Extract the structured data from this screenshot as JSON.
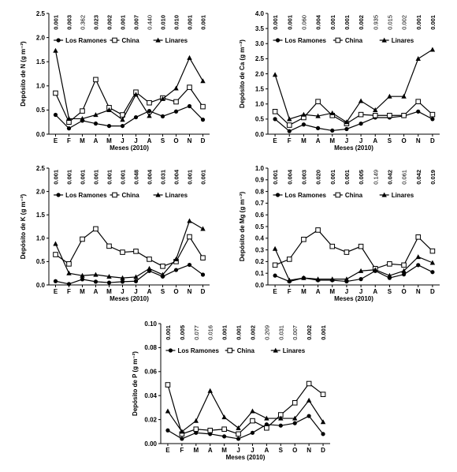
{
  "chart_data": [
    {
      "type": "line",
      "xlabel": "Meses (2010)",
      "ylabel": "Depósito de N (g m⁻²)",
      "ylim": [
        0,
        2.5
      ],
      "yticks": [
        "0.0",
        "0.5",
        "1.0",
        "1.5",
        "2.0",
        "2.5"
      ],
      "categories": [
        "E",
        "F",
        "M",
        "A",
        "M",
        "J",
        "J",
        "A",
        "S",
        "O",
        "N",
        "D"
      ],
      "pvalues": [
        "0.001",
        "0.003",
        "0.362",
        "0.023",
        "0.002",
        "0.001",
        "0.007",
        "0.440",
        "0.010",
        "0.010",
        "0.001",
        "0.001"
      ],
      "pvalues_bold": [
        true,
        true,
        false,
        true,
        true,
        true,
        true,
        false,
        true,
        true,
        true,
        true
      ],
      "legend_position": "top",
      "grid": false,
      "series": [
        {
          "name": "Los Ramones",
          "marker": "circle-filled",
          "values": [
            0.4,
            0.12,
            0.28,
            0.22,
            0.17,
            0.17,
            0.35,
            0.48,
            0.37,
            0.47,
            0.58,
            0.3
          ]
        },
        {
          "name": "China",
          "marker": "square-open",
          "values": [
            0.85,
            0.25,
            0.48,
            1.13,
            0.55,
            0.4,
            0.87,
            0.65,
            0.75,
            0.67,
            0.97,
            0.57
          ]
        },
        {
          "name": "Linares",
          "marker": "triangle-filled",
          "values": [
            1.73,
            0.32,
            0.32,
            0.4,
            0.5,
            0.3,
            0.82,
            0.38,
            0.73,
            0.95,
            1.58,
            1.1
          ]
        }
      ]
    },
    {
      "type": "line",
      "xlabel": "Meses (2010)",
      "ylabel": "Depósito de Ca (g m⁻²)",
      "ylim": [
        0,
        4.0
      ],
      "yticks": [
        "0.0",
        "0.5",
        "1.0",
        "1.5",
        "2.0",
        "2.5",
        "3.0",
        "3.5",
        "4.0"
      ],
      "categories": [
        "E",
        "F",
        "M",
        "A",
        "M",
        "J",
        "J",
        "A",
        "S",
        "O",
        "N",
        "D"
      ],
      "pvalues": [
        "0.001",
        "0.001",
        "0.060",
        "0.004",
        "0.001",
        "0.001",
        "0.002",
        "0.935",
        "0.015",
        "0.002",
        "0.001",
        "0.001"
      ],
      "pvalues_bold": [
        true,
        true,
        false,
        true,
        true,
        true,
        true,
        false,
        false,
        false,
        true,
        true
      ],
      "legend_position": "top",
      "grid": false,
      "series": [
        {
          "name": "Los Ramones",
          "marker": "circle-filled",
          "values": [
            0.5,
            0.1,
            0.32,
            0.2,
            0.12,
            0.17,
            0.35,
            0.55,
            0.55,
            0.6,
            0.75,
            0.5
          ]
        },
        {
          "name": "China",
          "marker": "square-open",
          "values": [
            0.75,
            0.3,
            0.55,
            1.08,
            0.62,
            0.35,
            0.65,
            0.62,
            0.62,
            0.62,
            1.08,
            0.65
          ]
        },
        {
          "name": "Linares",
          "marker": "triangle-filled",
          "values": [
            1.97,
            0.5,
            0.65,
            0.6,
            0.7,
            0.4,
            1.1,
            0.8,
            1.25,
            1.25,
            2.5,
            2.8
          ]
        }
      ]
    },
    {
      "type": "line",
      "xlabel": "Meses (2010)",
      "ylabel": "Depósito de K (g m⁻²)",
      "ylim": [
        0,
        2.5
      ],
      "yticks": [
        "0.0",
        "0.5",
        "1.0",
        "1.5",
        "2.0",
        "2.5"
      ],
      "categories": [
        "E",
        "F",
        "M",
        "A",
        "M",
        "J",
        "J",
        "A",
        "S",
        "O",
        "N",
        "D"
      ],
      "pvalues": [
        "0.001",
        "0.001",
        "0.001",
        "0.001",
        "0.001",
        "0.001",
        "0.048",
        "0.004",
        "0.031",
        "0.004",
        "0.001",
        "0.001"
      ],
      "pvalues_bold": [
        true,
        true,
        true,
        true,
        true,
        true,
        true,
        true,
        true,
        true,
        true,
        true
      ],
      "legend_position": "top",
      "grid": false,
      "series": [
        {
          "name": "Los Ramones",
          "marker": "circle-filled",
          "values": [
            0.08,
            0.02,
            0.12,
            0.07,
            0.05,
            0.07,
            0.08,
            0.3,
            0.18,
            0.32,
            0.43,
            0.22
          ]
        },
        {
          "name": "China",
          "marker": "square-open",
          "values": [
            0.65,
            0.45,
            0.98,
            1.2,
            0.83,
            0.7,
            0.72,
            0.55,
            0.4,
            0.5,
            1.03,
            0.58
          ]
        },
        {
          "name": "Linares",
          "marker": "triangle-filled",
          "values": [
            0.88,
            0.25,
            0.2,
            0.22,
            0.18,
            0.15,
            0.17,
            0.35,
            0.22,
            0.55,
            1.37,
            1.2
          ]
        }
      ]
    },
    {
      "type": "line",
      "xlabel": "Meses (2010)",
      "ylabel": "Depósito de Mg (g m⁻²)",
      "ylim": [
        0,
        1.0
      ],
      "yticks": [
        "0.0",
        "0.1",
        "0.2",
        "0.3",
        "0.4",
        "0.5",
        "0.6",
        "0.7",
        "0.8",
        "0.9",
        "1.0"
      ],
      "categories": [
        "E",
        "F",
        "M",
        "A",
        "M",
        "J",
        "J",
        "A",
        "S",
        "O",
        "N",
        "D"
      ],
      "pvalues": [
        "0.001",
        "0.004",
        "0.003",
        "0.020",
        "0.001",
        "0.001",
        "0.005",
        "0.149",
        "0.042",
        "0.061",
        "0.042",
        "0.019"
      ],
      "pvalues_bold": [
        true,
        true,
        true,
        true,
        true,
        true,
        true,
        false,
        true,
        false,
        true,
        true
      ],
      "legend_position": "top",
      "grid": false,
      "series": [
        {
          "name": "Los Ramones",
          "marker": "circle-filled",
          "values": [
            0.08,
            0.03,
            0.06,
            0.04,
            0.04,
            0.03,
            0.05,
            0.12,
            0.06,
            0.09,
            0.17,
            0.11
          ]
        },
        {
          "name": "China",
          "marker": "square-open",
          "values": [
            0.17,
            0.22,
            0.39,
            0.47,
            0.33,
            0.28,
            0.33,
            0.14,
            0.18,
            0.17,
            0.41,
            0.29
          ]
        },
        {
          "name": "Linares",
          "marker": "triangle-filled",
          "values": [
            0.31,
            0.04,
            0.06,
            0.05,
            0.05,
            0.05,
            0.12,
            0.13,
            0.08,
            0.12,
            0.24,
            0.19
          ]
        }
      ]
    },
    {
      "type": "line",
      "xlabel": "Meses (2010)",
      "ylabel": "Depósito de P (g m⁻²)",
      "ylim": [
        0,
        0.1
      ],
      "yticks": [
        "0.00",
        "0.02",
        "0.04",
        "0.06",
        "0.08",
        "0.10"
      ],
      "categories": [
        "E",
        "F",
        "M",
        "A",
        "M",
        "J",
        "J",
        "A",
        "S",
        "O",
        "N",
        "D"
      ],
      "pvalues": [
        "0.001",
        "0.005",
        "0.077",
        "0.016",
        "0.001",
        "0.001",
        "0.002",
        "0.209",
        "0.031",
        "0.007",
        "0.002",
        "0.001"
      ],
      "pvalues_bold": [
        true,
        true,
        false,
        false,
        true,
        true,
        true,
        false,
        false,
        false,
        true,
        true
      ],
      "legend_position": "top",
      "grid": false,
      "series": [
        {
          "name": "Los Ramones",
          "marker": "circle-filled",
          "values": [
            0.011,
            0.004,
            0.009,
            0.008,
            0.006,
            0.004,
            0.009,
            0.016,
            0.015,
            0.017,
            0.023,
            0.008
          ]
        },
        {
          "name": "China",
          "marker": "square-open",
          "values": [
            0.049,
            0.008,
            0.012,
            0.011,
            0.012,
            0.008,
            0.019,
            0.013,
            0.024,
            0.034,
            0.05,
            0.041
          ]
        },
        {
          "name": "Linares",
          "marker": "triangle-filled",
          "values": [
            0.027,
            0.01,
            0.019,
            0.044,
            0.022,
            0.013,
            0.027,
            0.021,
            0.021,
            0.021,
            0.036,
            0.018
          ]
        }
      ]
    }
  ]
}
